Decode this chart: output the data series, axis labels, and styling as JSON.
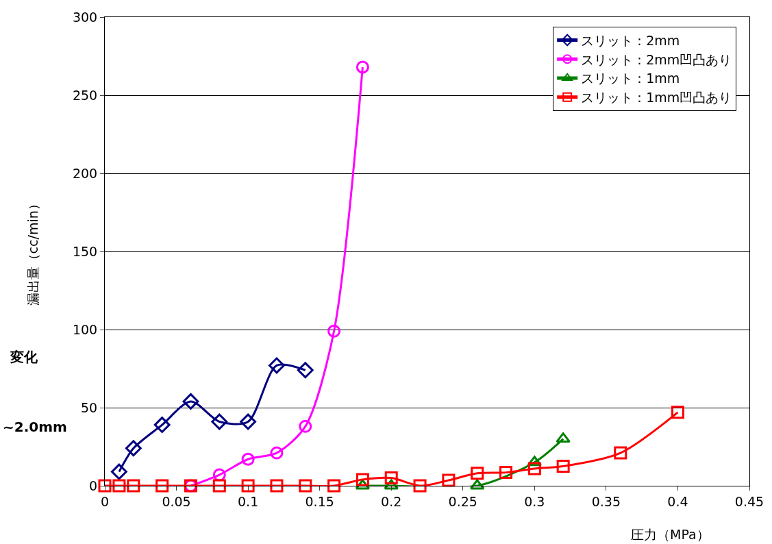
{
  "chart_data": {
    "type": "line",
    "xlabel": "圧力（MPa）",
    "ylabel": "漏出量（cc/min）",
    "xlim": [
      0,
      0.45
    ],
    "xticks": [
      0,
      0.05,
      0.1,
      0.15,
      0.2,
      0.25,
      0.3,
      0.35,
      0.4,
      0.45
    ],
    "ylim": [
      0,
      300
    ],
    "yticks": [
      0,
      50,
      100,
      150,
      200,
      250,
      300
    ],
    "grid": "y",
    "legend": "top right",
    "annotations": [
      "変化",
      "~2.0mm"
    ],
    "series": [
      {
        "name": "スリット：2mm",
        "color": "#000080",
        "marker": "diamond",
        "x": [
          0.01,
          0.02,
          0.04,
          0.06,
          0.08,
          0.1,
          0.12,
          0.14
        ],
        "values": [
          9,
          24,
          39,
          54,
          41,
          41,
          77,
          74
        ]
      },
      {
        "name": "スリット：2mm凹凸あり",
        "color": "#ff00ff",
        "marker": "circle",
        "x": [
          0.06,
          0.08,
          0.1,
          0.12,
          0.14,
          0.16,
          0.18
        ],
        "values": [
          0,
          7,
          17,
          21,
          38,
          99,
          268
        ]
      },
      {
        "name": "スリット：1mm",
        "color": "#008000",
        "marker": "triangle",
        "x": [
          0.18,
          0.2,
          0.26,
          0.3,
          0.32
        ],
        "values": [
          0,
          0,
          0,
          15,
          30
        ]
      },
      {
        "name": "スリット：1mm凹凸あり",
        "color": "#ff0000",
        "marker": "square",
        "x": [
          0,
          0.01,
          0.02,
          0.04,
          0.06,
          0.08,
          0.1,
          0.12,
          0.14,
          0.16,
          0.18,
          0.2,
          0.22,
          0.24,
          0.26,
          0.28,
          0.3,
          0.32,
          0.36,
          0.4
        ],
        "values": [
          0,
          0,
          0,
          0,
          0,
          0,
          0,
          0,
          0,
          0,
          4,
          5,
          0,
          3.5,
          8,
          8.5,
          11,
          12.5,
          21,
          47
        ]
      }
    ]
  }
}
